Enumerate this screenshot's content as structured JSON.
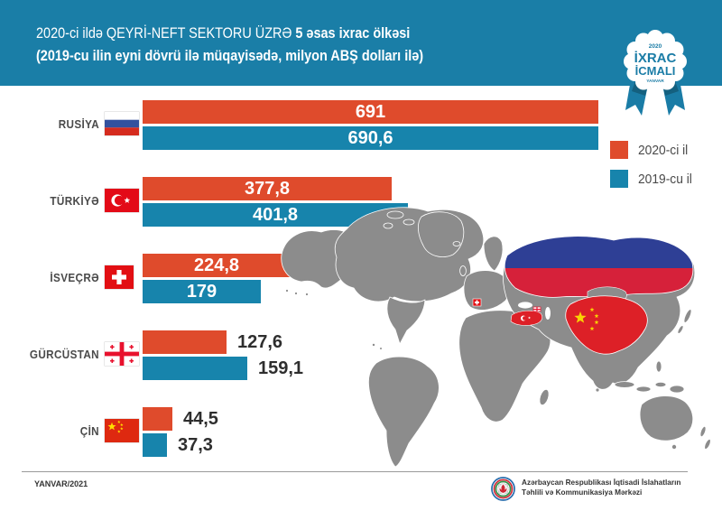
{
  "page": {
    "background": "#ffffff"
  },
  "header": {
    "background_color": "#1a7ea7",
    "title_prefix": "2020-ci ildə  QEYRİ-NEFT SEKTORU ÜZRƏ ",
    "title_bold": "5 əsas ixrac ölkəsi",
    "subtitle": "(2019-cu ilin eyni dövrü ilə müqayisədə, milyon ABŞ dolları ilə)"
  },
  "badge": {
    "top_text": "2020",
    "line1": "İXRAC",
    "line2": "İCMALI",
    "bottom_text": "YANVAR",
    "text_color": "#1a7ca6",
    "ribbon_color": "#1a7ca6"
  },
  "legend": {
    "items": [
      {
        "label": "2020-ci il",
        "color": "#df4b2c"
      },
      {
        "label": "2019-cu il",
        "color": "#1784ac"
      }
    ]
  },
  "chart_data": {
    "type": "bar",
    "orientation": "horizontal",
    "title": "2020-ci ildə QEYRİ-NEFT SEKTORU ÜZRƏ 5 əsas ixrac ölkəsi (2019-cu ilin eyni dövrü ilə müqayisədə, milyon ABŞ dolları ilə)",
    "unit": "milyon ABŞ dolları",
    "categories": [
      "Rusiya",
      "Türkiyə",
      "İsveçrə",
      "Gürcüstan",
      "Çin"
    ],
    "series": [
      {
        "name": "2020-ci il",
        "color": "#df4b2c",
        "values": [
          691,
          377.8,
          224.8,
          127.6,
          44.5
        ]
      },
      {
        "name": "2019-cu il",
        "color": "#1784ac",
        "values": [
          690.6,
          401.8,
          179,
          159.1,
          37.3
        ]
      }
    ],
    "xlim": [
      0,
      691
    ],
    "grid": false,
    "legend_position": "right",
    "rows": [
      {
        "label": "RUSİYA",
        "flag": "russia-flag",
        "display_2020": "691",
        "display_2019": "690,6",
        "value_2020": 691,
        "value_2019": 690.6,
        "labels_inside": true
      },
      {
        "label": "TÜRKİYƏ",
        "flag": "turkey-flag",
        "display_2020": "377,8",
        "display_2019": "401,8",
        "value_2020": 377.8,
        "value_2019": 401.8,
        "labels_inside": true
      },
      {
        "label": "İSVEÇRƏ",
        "flag": "switzerland-flag",
        "display_2020": "224,8",
        "display_2019": "179",
        "value_2020": 224.8,
        "value_2019": 179,
        "labels_inside": true
      },
      {
        "label": "GÜRCÜSTAN",
        "flag": "georgia-flag",
        "display_2020": "127,6",
        "display_2019": "159,1",
        "value_2020": 127.6,
        "value_2019": 159.1,
        "labels_inside": false
      },
      {
        "label": "ÇİN",
        "flag": "china-flag",
        "display_2020": "44,5",
        "display_2019": "37,3",
        "value_2020": 44.5,
        "value_2019": 37.3,
        "labels_inside": false
      }
    ]
  },
  "map": {
    "base_color": "#8c8c8c",
    "highlights": [
      {
        "country": "Rusiya",
        "style": "flag colors blue/red"
      },
      {
        "country": "Çin",
        "style": "red with yellow stars"
      },
      {
        "country": "Türkiyə",
        "style": "red with white crescent"
      },
      {
        "country": "İsveçrə",
        "style": "red with white cross"
      },
      {
        "country": "Gürcüstan",
        "style": "white with red crosses"
      }
    ]
  },
  "footer": {
    "date": "YANVAR/2021",
    "org_line1": "Azərbaycan Respublikası İqtisadi İslahatların",
    "org_line2": "Təhlili və Kommunikasiya Mərkəzi"
  }
}
